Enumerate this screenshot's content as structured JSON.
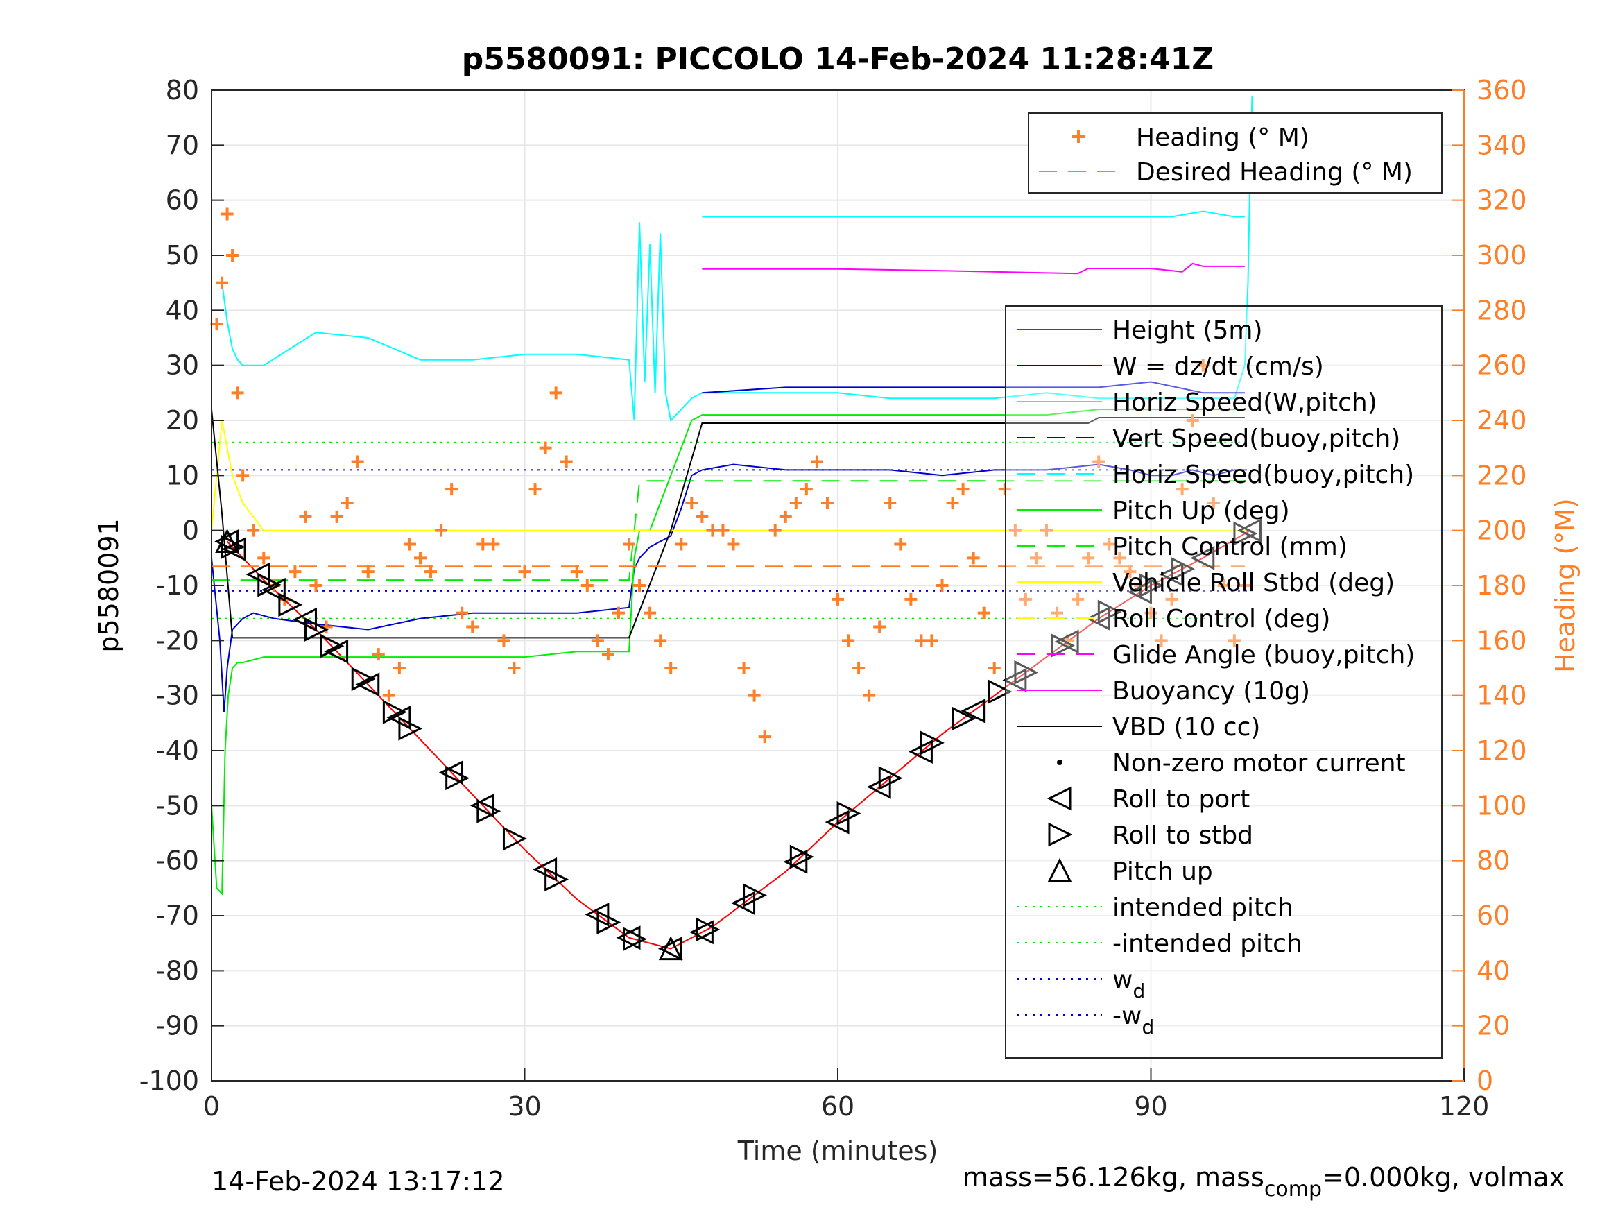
{
  "figure": {
    "title": "p5580091: PICCOLO 14-Feb-2024 11:28:41Z",
    "xlabel": "Time (minutes)",
    "ylabel_left": "p5580091",
    "ylabel_right": "Heading (°M)",
    "footer_left": "14-Feb-2024 13:17:12",
    "footer_right_a": "mass=56.126kg, mass",
    "footer_right_sub": "comp",
    "footer_right_b": "=0.000kg, volmax"
  },
  "chart_data": {
    "type": "line",
    "title": "p5580091: PICCOLO 14-Feb-2024 11:28:41Z",
    "xlabel": "Time (minutes)",
    "ylabel": "p5580091",
    "y2label": "Heading (°M)",
    "xlim": [
      0,
      120
    ],
    "ylim": [
      -100,
      80
    ],
    "y2lim": [
      0,
      360
    ],
    "xticks": [
      0,
      30,
      60,
      90,
      120
    ],
    "yticks": [
      -100,
      -90,
      -80,
      -70,
      -60,
      -50,
      -40,
      -30,
      -20,
      -10,
      0,
      10,
      20,
      30,
      40,
      50,
      60,
      70,
      80
    ],
    "y2ticks": [
      0,
      20,
      40,
      60,
      80,
      100,
      120,
      140,
      160,
      180,
      200,
      220,
      240,
      260,
      280,
      300,
      320,
      340,
      360
    ],
    "grid": true,
    "legend_heading_placement": "top-right",
    "legend_main_placement": "right",
    "colors": {
      "height": "#ff0000",
      "w": "#0000cc",
      "cyan": "#00ffff",
      "green": "#00ee00",
      "yellow": "#ffff00",
      "magenta": "#ff00ff",
      "black": "#000000",
      "orange": "#ff7f27",
      "axis_right": "#ff7f27",
      "grid": "#e6e6e6"
    },
    "legend_heading": [
      {
        "label": "Heading (° M)",
        "style": "plus",
        "color": "#ff7f27"
      },
      {
        "label": "Desired Heading (° M)",
        "style": "dash",
        "color": "#ff7f27"
      }
    ],
    "legend_main": [
      {
        "label": "Height (5m)",
        "style": "solid",
        "color": "#ff0000"
      },
      {
        "label": "W = dz/dt (cm/s)",
        "style": "solid",
        "color": "#0000cc"
      },
      {
        "label": "Horiz Speed(W,pitch)",
        "style": "solid",
        "color": "#00ffff"
      },
      {
        "label": "Vert Speed(buoy,pitch)",
        "style": "dash",
        "color": "#0000cc"
      },
      {
        "label": "Horiz Speed(buoy,pitch)",
        "style": "dash",
        "color": "#00ffff"
      },
      {
        "label": "Pitch Up (deg)",
        "style": "solid",
        "color": "#00ee00"
      },
      {
        "label": "Pitch Control (mm)",
        "style": "dash",
        "color": "#00ee00"
      },
      {
        "label": "Vehicle Roll Stbd (deg)",
        "style": "solid",
        "color": "#ffff00"
      },
      {
        "label": "Roll Control (deg)",
        "style": "dash",
        "color": "#ffff00"
      },
      {
        "label": "Glide Angle (buoy,pitch)",
        "style": "dash",
        "color": "#ff00ff"
      },
      {
        "label": "Buoyancy (10g)",
        "style": "solid",
        "color": "#ff00ff"
      },
      {
        "label": "VBD (10 cc)",
        "style": "solid",
        "color": "#000000"
      },
      {
        "label": "Non-zero motor current",
        "style": "dot",
        "color": "#000000"
      },
      {
        "label": "Roll to port",
        "style": "tri-left",
        "color": "#000000"
      },
      {
        "label": "Roll to stbd",
        "style": "tri-right",
        "color": "#000000"
      },
      {
        "label": "Pitch up",
        "style": "tri-up",
        "color": "#000000"
      },
      {
        "label": "intended pitch",
        "style": "dotted",
        "color": "#00ee00"
      },
      {
        "label": "-intended pitch",
        "style": "dotted",
        "color": "#00ee00"
      },
      {
        "label": "w",
        "sub": "d",
        "style": "dotted",
        "color": "#0000cc"
      },
      {
        "label": "-w",
        "sub": "d",
        "style": "dotted",
        "color": "#0000cc"
      }
    ],
    "series": [
      {
        "name": "Height (5m)",
        "color": "#ff0000",
        "x": [
          1.5,
          5,
          10,
          15,
          20,
          25,
          30,
          35,
          40,
          44,
          48,
          55,
          60,
          65,
          70,
          75,
          80,
          85,
          90,
          95,
          99.5
        ],
        "y": [
          -2,
          -9,
          -18,
          -28,
          -38,
          -48,
          -58,
          -67,
          -74,
          -76,
          -72,
          -62,
          -53,
          -45,
          -37,
          -30,
          -23,
          -16,
          -10,
          -5,
          0
        ]
      },
      {
        "name": "W = dz/dt (cm/s)",
        "color": "#0000cc",
        "x": [
          0,
          0.8,
          1.2,
          1.5,
          2,
          2.5,
          3,
          4,
          6,
          10,
          15,
          20,
          25,
          30,
          35,
          40,
          40.5,
          41,
          42,
          43,
          44,
          45,
          46,
          47,
          50,
          55,
          60,
          65,
          70,
          75,
          80,
          85,
          88,
          90,
          92,
          94,
          96,
          98,
          99
        ],
        "y": [
          -5,
          -20,
          -33,
          -25,
          -18,
          -17,
          -16,
          -15,
          -16,
          -17,
          -18,
          -16,
          -15,
          -15,
          -15,
          -14,
          -7,
          -5,
          -3,
          -2,
          -1,
          4,
          10,
          11,
          12,
          11,
          11,
          11,
          10,
          11,
          11,
          12,
          11,
          10,
          10,
          11,
          10,
          11,
          11
        ]
      },
      {
        "name": "Horiz Speed(W,pitch)",
        "color": "#00ffff",
        "x": [
          1,
          1.5,
          2,
          2.5,
          3,
          5,
          10,
          15,
          20,
          25,
          30,
          35,
          40,
          40.5,
          41,
          41.5,
          42,
          42.5,
          43,
          43.5,
          44,
          45,
          46,
          47,
          50,
          55,
          60,
          65,
          70,
          75,
          80,
          85,
          90,
          95,
          98,
          99,
          99.3,
          99.5,
          99.7
        ],
        "y": [
          45,
          38,
          33,
          31,
          30,
          30,
          36,
          35,
          31,
          31,
          32,
          32,
          31,
          20,
          56,
          27,
          52,
          25,
          54,
          25,
          20,
          22,
          24,
          25,
          25,
          25,
          25,
          24,
          24,
          24,
          25,
          24,
          24,
          24,
          24,
          30,
          45,
          65,
          79
        ]
      },
      {
        "name": "Horiz Speed(W,pitch) (upper)",
        "color": "#00ffff",
        "x": [
          47,
          52,
          57,
          62,
          67,
          72,
          77,
          82,
          87,
          92,
          95,
          98,
          99
        ],
        "y": [
          57,
          57,
          57,
          57,
          57,
          57,
          57,
          57,
          57,
          57,
          58,
          57,
          57
        ]
      },
      {
        "name": "Vert Speed(buoy,pitch)",
        "color": "#0000cc",
        "x": [
          47,
          55,
          65,
          75,
          85,
          90,
          95,
          99
        ],
        "y": [
          25,
          26,
          26,
          26,
          26,
          27,
          25,
          25
        ]
      },
      {
        "name": "Pitch Up (deg)",
        "color": "#00ee00",
        "x": [
          0,
          0.5,
          1,
          1.3,
          1.6,
          2,
          2.5,
          3,
          5,
          10,
          15,
          20,
          25,
          30,
          35,
          40,
          40.5,
          41,
          42,
          43,
          44,
          45,
          46,
          47,
          50,
          55,
          60,
          65,
          70,
          75,
          80,
          85,
          90,
          95,
          99
        ],
        "y": [
          -50,
          -65,
          -66,
          -40,
          -30,
          -25,
          -24,
          -24,
          -23,
          -23,
          -23,
          -23,
          -23,
          -23,
          -22,
          -22,
          -5,
          0,
          0,
          5,
          10,
          15,
          20,
          21,
          21,
          21,
          21,
          21,
          21,
          21,
          21,
          22,
          22,
          22,
          22
        ]
      },
      {
        "name": "Pitch Control (mm)",
        "color": "#00ee00",
        "x": [
          0,
          40,
          41,
          99
        ],
        "y": [
          -9,
          -9,
          9,
          9
        ]
      },
      {
        "name": "Vehicle Roll Stbd (deg)",
        "color": "#ffff00",
        "x": [
          0,
          1,
          2,
          3,
          5,
          10,
          15,
          20,
          25,
          30,
          35,
          40,
          45,
          50,
          55,
          60,
          65,
          70,
          75,
          80,
          85,
          90,
          95,
          99
        ],
        "y": [
          0,
          20,
          10,
          5,
          0,
          0,
          0,
          0,
          0,
          0,
          0,
          0,
          0,
          0,
          0,
          0,
          0,
          0,
          0,
          0,
          0,
          0,
          0,
          0
        ]
      },
      {
        "name": "Buoyancy (10g)",
        "color": "#ff00ff",
        "x": [
          47,
          60,
          70,
          80,
          83,
          84,
          90,
          93,
          94,
          95,
          99
        ],
        "y": [
          47.5,
          47.5,
          47.2,
          46.8,
          46.7,
          47.6,
          47.6,
          47,
          48.5,
          48,
          48
        ]
      },
      {
        "name": "VBD (10 cc)",
        "color": "#000000",
        "x": [
          0,
          1,
          2,
          40,
          44,
          47,
          84,
          85,
          99
        ],
        "y": [
          22,
          3,
          -19.5,
          -19.5,
          0,
          19.5,
          19.5,
          20.5,
          20.5
        ]
      },
      {
        "name": "Heading (° M)",
        "axis": "right",
        "color": "#ff7f27",
        "x": [
          0.5,
          1,
          1.5,
          2,
          2.5,
          3,
          4,
          5,
          6,
          7,
          8,
          9,
          10,
          11,
          12,
          13,
          14,
          15,
          16,
          17,
          18,
          19,
          20,
          21,
          22,
          23,
          24,
          25,
          26,
          27,
          28,
          29,
          30,
          31,
          32,
          33,
          34,
          35,
          36,
          37,
          38,
          39,
          40,
          41,
          42,
          43,
          44,
          45,
          46,
          47,
          48,
          49,
          50,
          51,
          52,
          53,
          54,
          55,
          56,
          57,
          58,
          59,
          60,
          61,
          62,
          63,
          64,
          65,
          66,
          67,
          68,
          69,
          70,
          71,
          72,
          73,
          74,
          75,
          76,
          77,
          78,
          79,
          80,
          81,
          82,
          83,
          84,
          85,
          86,
          87,
          88,
          89,
          90,
          91,
          92,
          93,
          94,
          95,
          96,
          97,
          98,
          99
        ],
        "y": [
          275,
          290,
          315,
          300,
          250,
          220,
          200,
          190,
          180,
          175,
          185,
          205,
          180,
          165,
          205,
          210,
          225,
          185,
          155,
          140,
          150,
          195,
          190,
          185,
          200,
          215,
          170,
          165,
          195,
          195,
          160,
          150,
          185,
          215,
          230,
          250,
          225,
          185,
          180,
          160,
          155,
          170,
          195,
          180,
          170,
          160,
          150,
          195,
          210,
          205,
          200,
          200,
          195,
          150,
          140,
          125,
          200,
          205,
          210,
          215,
          225,
          210,
          175,
          160,
          150,
          140,
          165,
          210,
          195,
          175,
          160,
          160,
          180,
          210,
          215,
          190,
          170,
          150,
          215,
          200,
          175,
          190,
          200,
          170,
          160,
          175,
          190,
          225,
          195,
          190,
          185,
          180,
          170,
          160,
          175,
          215,
          240,
          260,
          210,
          180,
          160,
          180
        ]
      },
      {
        "name": "Desired Heading (° M)",
        "axis": "right",
        "color": "#ff7f27",
        "x": [
          0,
          99
        ],
        "y": [
          187,
          187
        ]
      }
    ],
    "reference_lines": [
      {
        "name": "intended pitch",
        "y": 16,
        "color": "#00ee00"
      },
      {
        "name": "-intended pitch",
        "y": -16,
        "color": "#00ee00"
      },
      {
        "name": "w_d",
        "y": 11,
        "color": "#0000cc"
      },
      {
        "name": "-w_d",
        "y": -11,
        "color": "#0000cc"
      }
    ],
    "markers": {
      "roll_to_port": {
        "x": [
          1.5,
          2.2,
          4.5,
          6,
          9,
          12,
          15,
          18,
          23,
          26,
          32,
          37,
          40,
          44,
          47,
          51,
          56,
          60,
          64,
          68,
          73,
          77,
          82,
          85,
          89,
          92,
          95,
          99.5
        ]
      },
      "roll_to_stbd": {
        "x": [
          2,
          5.5,
          7.5,
          10,
          11.5,
          14.5,
          17.5,
          19,
          23.5,
          26.5,
          29,
          33,
          38,
          40.5,
          47.5,
          52,
          56.5,
          61,
          65,
          69,
          72,
          75.5,
          78,
          81.5,
          86,
          90,
          93,
          99
        ]
      },
      "pitch_up": {
        "x": [
          1.5,
          44
        ]
      }
    }
  }
}
